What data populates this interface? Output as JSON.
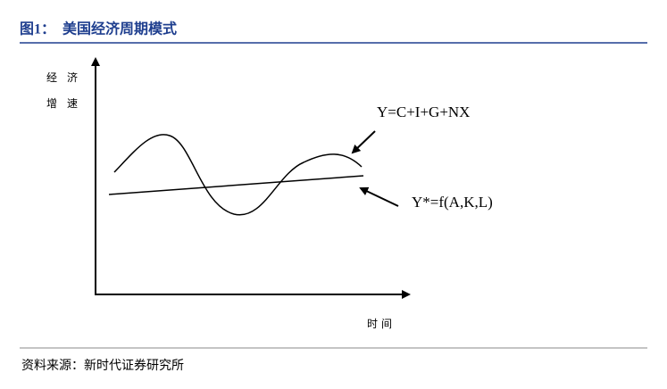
{
  "header": {
    "title": "图1：  美国经济周期模式"
  },
  "diagram": {
    "y_label": [
      "经 济",
      "增 速"
    ],
    "x_label": "时间",
    "curves": [
      {
        "label": "Y=C+I+G+NX"
      },
      {
        "label": "Y*=f(A,K,L)"
      }
    ]
  },
  "source": "资料来源：新时代证券研究所"
}
